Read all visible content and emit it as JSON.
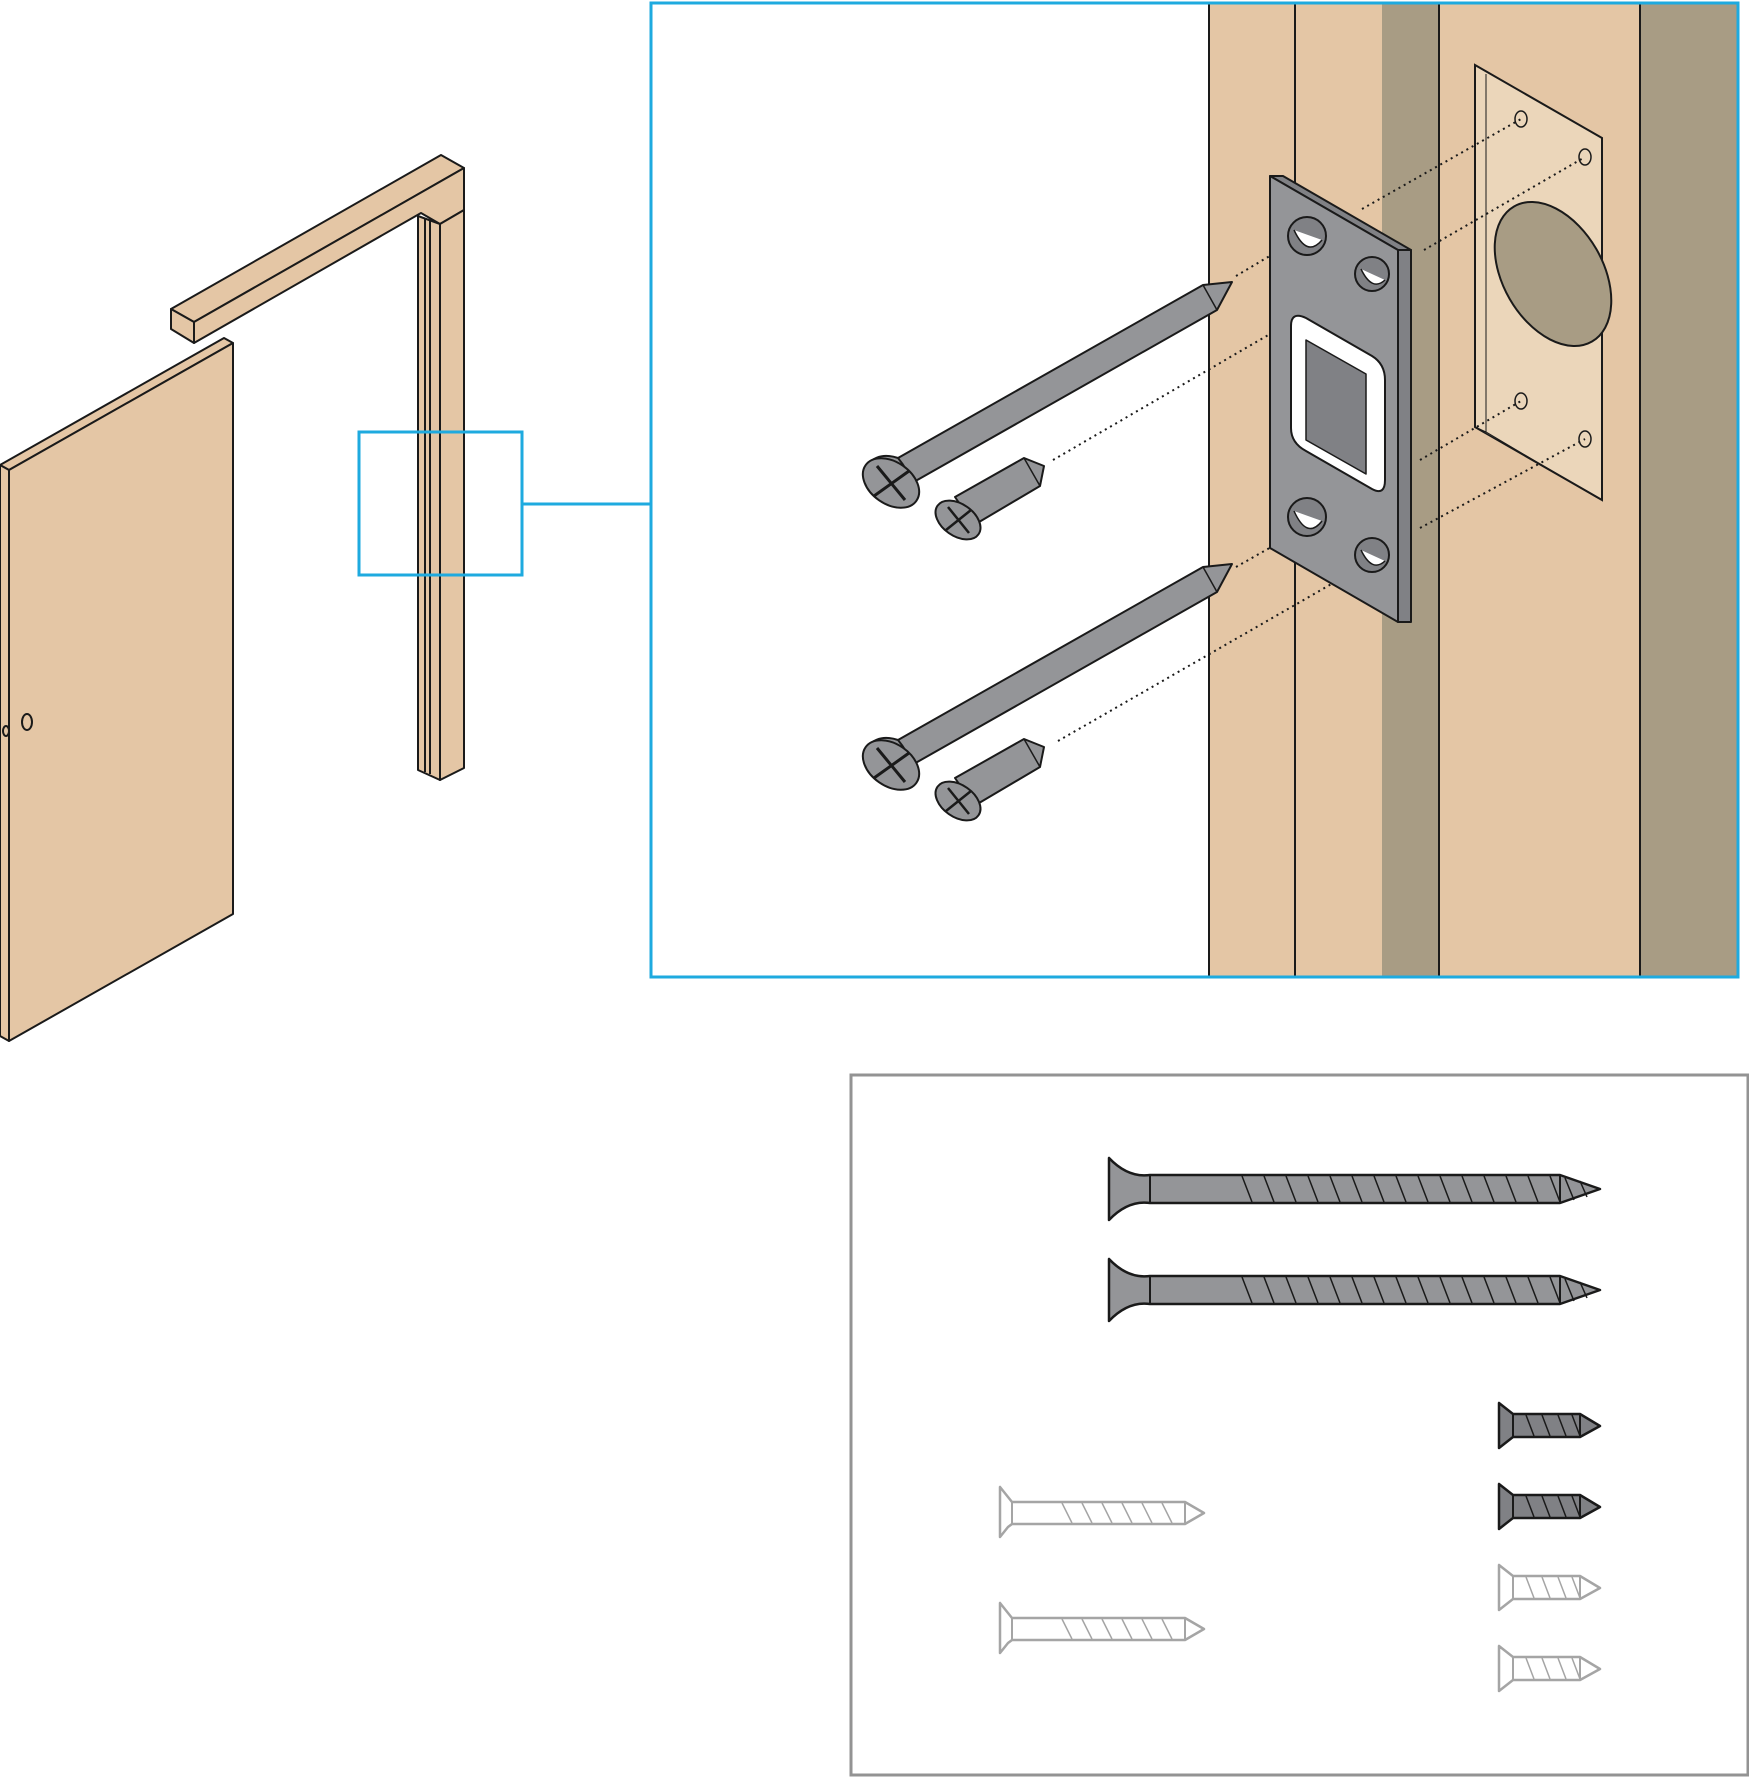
{
  "colors": {
    "wood": "#e4c6a5",
    "wood_light": "#ebd6ba",
    "wood_shadow": "#a89c84",
    "metal": "#949598",
    "metal_dark": "#808185",
    "callout": "#1eaadf",
    "inventory_frame": "#939393",
    "ghost_stroke": "#a5a5a5",
    "outline": "#1a1a1a"
  },
  "icons": {
    "door": "door-icon",
    "frame": "door-frame-icon",
    "strike_plate": "strike-plate-icon",
    "long_screw": "long-screw-icon",
    "short_screw": "short-screw-icon"
  },
  "inventory": {
    "long_screws_included": 2,
    "short_screws_included": 2,
    "short_screws_not_included": 2,
    "tiny_screws_included": 2,
    "tiny_screws_not_included": 2
  }
}
